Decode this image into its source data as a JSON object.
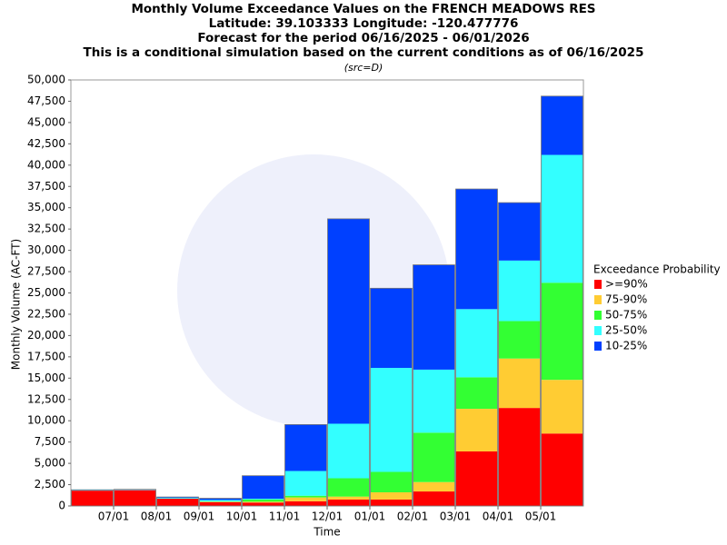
{
  "chart_data": {
    "type": "stacked_bar",
    "title": "Monthly Volume Exceedance Values on the FRENCH MEADOWS RES",
    "subtitle_lines": [
      "Latitude: 39.103333 Longitude: -120.477776",
      "Forecast for the period 06/16/2025 - 06/01/2026",
      "This is a conditional simulation based on the current conditions as of 06/16/2025"
    ],
    "source_note": "(src=D)",
    "x_label": "Time",
    "y_label": "Monthly Volume (AC-FT)",
    "legend_title": "Exceedance Probability",
    "legend_position": "right",
    "categories": [
      null,
      null,
      null,
      null,
      null,
      null,
      null,
      null,
      null,
      null,
      null,
      null
    ],
    "xlim": [
      0,
      12
    ],
    "xticks": [
      {
        "value": 1,
        "label": "07/01"
      },
      {
        "value": 2,
        "label": "08/01"
      },
      {
        "value": 3,
        "label": "09/01"
      },
      {
        "value": 4,
        "label": "10/01"
      },
      {
        "value": 5,
        "label": "11/01"
      },
      {
        "value": 6,
        "label": "12/01"
      },
      {
        "value": 7,
        "label": "01/01"
      },
      {
        "value": 8,
        "label": "02/01"
      },
      {
        "value": 9,
        "label": "03/01"
      },
      {
        "value": 10,
        "label": "04/01"
      },
      {
        "value": 11,
        "label": "05/01"
      }
    ],
    "ylim": [
      0,
      50000
    ],
    "yticks": [
      0,
      {
        "value": 2500,
        "label": "2,500"
      },
      {
        "value": 5000,
        "label": "5,000"
      },
      {
        "value": 7500,
        "label": "7,500"
      },
      {
        "value": 10000,
        "label": "10,000"
      },
      {
        "value": 12500,
        "label": "12,500"
      },
      {
        "value": 15000,
        "label": "15,000"
      },
      {
        "value": 17500,
        "label": "17,500"
      },
      {
        "value": 20000,
        "label": "20,000"
      },
      {
        "value": 22500,
        "label": "22,500"
      },
      {
        "value": 25000,
        "label": "25,000"
      },
      {
        "value": 27500,
        "label": "27,500"
      },
      {
        "value": 30000,
        "label": "30,000"
      },
      {
        "value": 32500,
        "label": "32,500"
      },
      {
        "value": 35000,
        "label": "35,000"
      },
      {
        "value": 37500,
        "label": "37,500"
      },
      {
        "value": 40000,
        "label": "40,000"
      },
      {
        "value": 42500,
        "label": "42,500"
      },
      {
        "value": 45000,
        "label": "45,000"
      },
      {
        "value": 47500,
        "label": "47,500"
      },
      {
        "value": 50000,
        "label": "50,000"
      }
    ],
    "grid": false,
    "series": [
      {
        "name": ">=90%",
        "color": "#ff0000",
        "values": [
          1800,
          1850,
          850,
          450,
          400,
          550,
          750,
          750,
          1700,
          6400,
          11500,
          8500
        ]
      },
      {
        "name": "75-90%",
        "color": "#ffcc33",
        "values": [
          0,
          0,
          0,
          50,
          100,
          450,
          350,
          850,
          1100,
          5000,
          5800,
          6300
        ]
      },
      {
        "name": "50-75%",
        "color": "#33ff33",
        "values": [
          0,
          0,
          0,
          50,
          250,
          200,
          2150,
          2400,
          5800,
          3700,
          4400,
          11400
        ]
      },
      {
        "name": "25-50%",
        "color": "#33ffff",
        "values": [
          50,
          50,
          100,
          150,
          100,
          2900,
          6400,
          12200,
          7400,
          8000,
          7100,
          15000
        ]
      },
      {
        "name": "10-25%",
        "color": "#0040ff",
        "values": [
          50,
          50,
          100,
          200,
          2700,
          5450,
          24050,
          9350,
          12300,
          14100,
          6800,
          6900
        ]
      }
    ]
  }
}
